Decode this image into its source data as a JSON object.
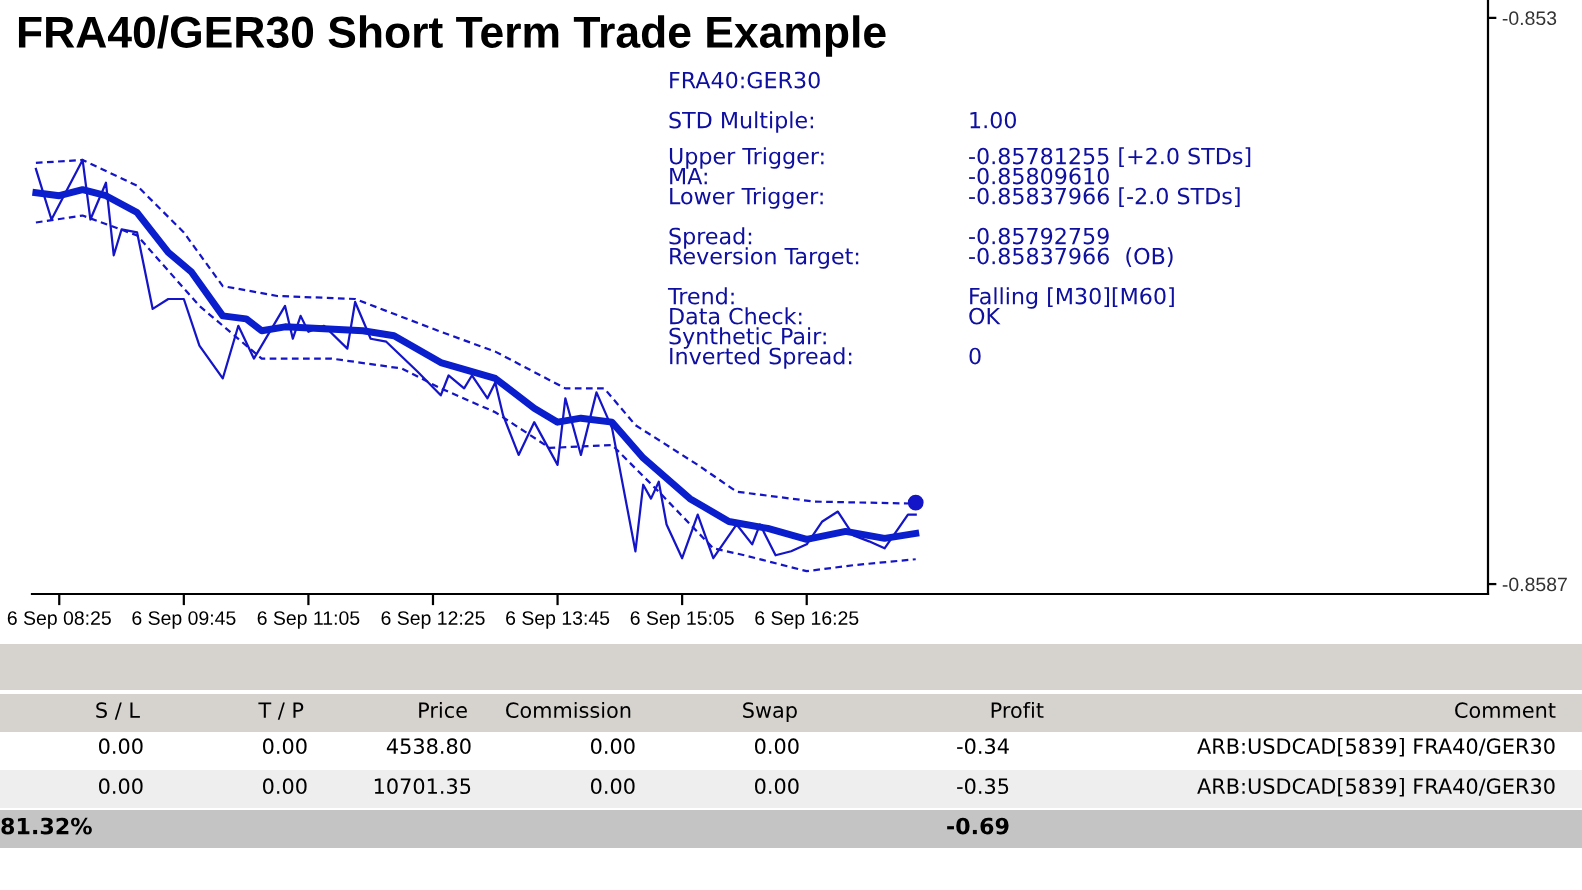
{
  "chart_data": {
    "type": "line",
    "title": "FRA40/GER30 Short Term Trade Example",
    "categories": [
      null,
      null,
      null,
      "6 Sep 08:25",
      null,
      null,
      null,
      null,
      null,
      null,
      null,
      null,
      null,
      null,
      null,
      null,
      null,
      null,
      null,
      "6 Sep 09:45",
      null,
      null,
      null,
      null,
      null,
      null,
      null,
      null,
      null,
      null,
      null,
      null,
      null,
      null,
      null,
      "6 Sep 11:05",
      null,
      null,
      null,
      null,
      null,
      null,
      null,
      null,
      null,
      null,
      null,
      null,
      null,
      null,
      null,
      "6 Sep 12:25",
      null,
      null,
      null,
      null,
      null,
      null,
      null,
      null,
      null,
      null,
      null,
      null,
      null,
      null,
      null,
      "6 Sep 13:45",
      null,
      null,
      null,
      null,
      null,
      null,
      null,
      null,
      null,
      null,
      null,
      null,
      null,
      null,
      null,
      "6 Sep 15:05",
      null,
      null,
      null,
      null,
      null,
      null,
      null,
      null,
      null,
      null,
      null,
      null,
      null,
      null,
      null,
      "6 Sep 16:25",
      null,
      null,
      null,
      null,
      null,
      null,
      null,
      null,
      null,
      null,
      null,
      null,
      null,
      null,
      null,
      null,
      null,
      null,
      null,
      null,
      null,
      null,
      null,
      null,
      null,
      null,
      null,
      null,
      null,
      null,
      null,
      null,
      null,
      null,
      null,
      null,
      null,
      null,
      null,
      null,
      null,
      null,
      null,
      null,
      null,
      null,
      null,
      null,
      null,
      null,
      null,
      null,
      null,
      null,
      null,
      null,
      null,
      null,
      null,
      null,
      null,
      null,
      null,
      null,
      null,
      null,
      null,
      null,
      null,
      null,
      null,
      null,
      null,
      null,
      null,
      null,
      null,
      null,
      null,
      null,
      null,
      null,
      null,
      null,
      null,
      null,
      null
    ],
    "ylim": [
      -0.8588,
      -0.85282
    ],
    "yticks": [
      -0.853,
      -0.8587
    ],
    "grid": false,
    "legend": false,
    "marker": "none",
    "series": [
      {
        "color": "#1414c8",
        "line_style": "solid",
        "values": [
          -0.85452,
          null,
          -0.85503,
          null,
          null,
          null,
          -0.85443,
          -0.85503,
          null,
          -0.85466,
          -0.85539,
          -0.85513,
          null,
          -0.85516,
          null,
          -0.85593,
          null,
          -0.85583,
          null,
          -0.85583,
          null,
          -0.8563,
          null,
          null,
          -0.85663,
          null,
          -0.8561,
          null,
          -0.85643,
          null,
          null,
          null,
          -0.8559,
          -0.85623,
          -0.856,
          -0.85616,
          null,
          -0.8561,
          null,
          null,
          -0.85633,
          -0.85586,
          null,
          -0.85623,
          null,
          -0.85626,
          null,
          null,
          null,
          -0.85656,
          null,
          null,
          -0.8568,
          -0.8566,
          null,
          -0.85673,
          -0.8566,
          null,
          -0.85683,
          -0.85667,
          -0.857,
          null,
          -0.8574,
          null,
          -0.85707,
          null,
          null,
          -0.8575,
          -0.85683,
          null,
          -0.8574,
          null,
          -0.85677,
          null,
          -0.85713,
          null,
          null,
          -0.85837,
          -0.8577,
          -0.85784,
          -0.85767,
          -0.8581,
          null,
          -0.85844,
          null,
          -0.858,
          null,
          -0.85844,
          null,
          null,
          -0.8581,
          null,
          -0.8583,
          -0.8581,
          null,
          -0.85841,
          null,
          -0.85837,
          null,
          -0.8583,
          null,
          -0.85807,
          null,
          -0.85797,
          null,
          -0.85821,
          null,
          -0.85827,
          null,
          -0.85834,
          null,
          null,
          -0.858,
          -0.858,
          null,
          null,
          null,
          null,
          null,
          null,
          null,
          null,
          null,
          null,
          null,
          null,
          null,
          null,
          null,
          null,
          null,
          null,
          null,
          null,
          null,
          null,
          null,
          null,
          null,
          null,
          null,
          null,
          null,
          null,
          null,
          null,
          null,
          null,
          null,
          null,
          null,
          null,
          null,
          null,
          null,
          null,
          null,
          null,
          null,
          null,
          null,
          null,
          null,
          null,
          null,
          null,
          null,
          null,
          null,
          null,
          null,
          null,
          null,
          null,
          null,
          null,
          null,
          null,
          null,
          null,
          null,
          null,
          null,
          null,
          null,
          null,
          null
        ]
      },
      {
        "color": "#0a1ecd",
        "line_style": "solid",
        "values": [
          -0.85476,
          null,
          null,
          -0.85479,
          null,
          null,
          -0.85473,
          null,
          null,
          -0.85479,
          null,
          null,
          null,
          -0.85496,
          null,
          null,
          null,
          -0.85536,
          null,
          null,
          -0.85556,
          null,
          null,
          null,
          -0.856,
          null,
          null,
          -0.85603,
          null,
          -0.85615,
          null,
          null,
          -0.85611,
          null,
          null,
          null,
          null,
          -0.85613,
          null,
          null,
          null,
          null,
          -0.85615,
          null,
          null,
          null,
          -0.8562,
          null,
          null,
          null,
          null,
          null,
          -0.85647,
          null,
          null,
          null,
          null,
          null,
          null,
          -0.85663,
          null,
          null,
          null,
          null,
          -0.85693,
          null,
          null,
          -0.85707,
          null,
          null,
          -0.85703,
          null,
          null,
          null,
          -0.85707,
          null,
          null,
          null,
          -0.85743,
          null,
          null,
          null,
          null,
          null,
          -0.85784,
          null,
          null,
          null,
          null,
          -0.85807,
          null,
          null,
          null,
          null,
          -0.85814,
          null,
          null,
          null,
          null,
          -0.85825,
          null,
          null,
          null,
          null,
          -0.85817,
          null,
          null,
          null,
          null,
          -0.85824,
          null,
          null,
          null,
          -0.85819,
          null,
          null,
          null,
          null,
          null,
          null,
          null,
          null,
          null,
          null,
          null,
          null,
          null,
          null,
          null,
          null,
          null,
          null,
          null,
          null,
          null,
          null,
          null,
          null,
          null,
          null,
          null,
          null,
          null,
          null,
          null,
          null,
          null,
          null,
          null,
          null,
          null,
          null,
          null,
          null,
          null,
          null,
          null,
          null,
          null,
          null,
          null,
          null,
          null,
          null,
          null,
          null,
          null,
          null,
          null,
          null,
          null,
          null,
          null,
          null,
          null,
          null,
          null,
          null,
          null,
          null,
          null,
          null,
          null,
          null,
          null,
          null,
          null
        ]
      },
      {
        "color": "#1414c8",
        "line_style": "dashed",
        "values": [
          -0.85446,
          null,
          null,
          null,
          null,
          null,
          -0.85443,
          null,
          null,
          null,
          null,
          null,
          null,
          -0.85469,
          null,
          null,
          null,
          null,
          null,
          -0.85516,
          null,
          null,
          null,
          null,
          -0.8557,
          null,
          null,
          null,
          null,
          null,
          null,
          -0.8558,
          null,
          null,
          null,
          null,
          null,
          null,
          null,
          null,
          null,
          -0.85583,
          null,
          null,
          null,
          null,
          null,
          null,
          null,
          null,
          null,
          null,
          -0.85616,
          null,
          null,
          null,
          null,
          null,
          null,
          -0.85636,
          null,
          null,
          null,
          null,
          null,
          null,
          null,
          null,
          -0.85673,
          null,
          null,
          null,
          null,
          -0.85673,
          null,
          null,
          null,
          -0.8571,
          null,
          null,
          null,
          null,
          null,
          null,
          null,
          -0.8575,
          null,
          null,
          null,
          null,
          -0.85777,
          null,
          null,
          null,
          null,
          null,
          null,
          null,
          null,
          null,
          -0.85787,
          null,
          null,
          null,
          null,
          null,
          null,
          null,
          null,
          null,
          null,
          null,
          null,
          -0.85789,
          null,
          null,
          null,
          null,
          null,
          null,
          null,
          null,
          null,
          null,
          null,
          null,
          null,
          null,
          null,
          null,
          null,
          null,
          null,
          null,
          null,
          null,
          null,
          null,
          null,
          null,
          null,
          null,
          null,
          null,
          null,
          null,
          null,
          null,
          null,
          null,
          null,
          null,
          null,
          null,
          null,
          null,
          null,
          null,
          null,
          null,
          null,
          null,
          null,
          null,
          null,
          null,
          null,
          null,
          null,
          null,
          null,
          null,
          null,
          null,
          null,
          null,
          null,
          null,
          null,
          null,
          null,
          null,
          null,
          null,
          null,
          null,
          null
        ]
      },
      {
        "color": "#1414c8",
        "line_style": "dashed",
        "values": [
          -0.85506,
          null,
          null,
          null,
          null,
          null,
          -0.85499,
          null,
          null,
          null,
          null,
          null,
          null,
          -0.85519,
          null,
          null,
          null,
          null,
          null,
          null,
          null,
          -0.8559,
          null,
          null,
          null,
          null,
          null,
          null,
          null,
          -0.85643,
          null,
          null,
          null,
          null,
          null,
          null,
          null,
          null,
          -0.85643,
          null,
          null,
          null,
          null,
          null,
          null,
          null,
          null,
          -0.85653,
          null,
          null,
          null,
          null,
          -0.85673,
          null,
          null,
          null,
          null,
          null,
          null,
          -0.85697,
          null,
          null,
          null,
          null,
          null,
          null,
          -0.85733,
          null,
          null,
          null,
          null,
          null,
          null,
          null,
          -0.8573,
          null,
          null,
          null,
          null,
          null,
          -0.85777,
          null,
          null,
          null,
          null,
          null,
          null,
          -0.85834,
          null,
          null,
          null,
          -0.85841,
          null,
          null,
          null,
          null,
          null,
          null,
          null,
          -0.85857,
          null,
          null,
          null,
          null,
          null,
          -0.85851,
          null,
          null,
          null,
          null,
          null,
          null,
          null,
          -0.85845,
          null,
          null,
          null,
          null,
          null,
          null,
          null,
          null,
          null,
          null,
          null,
          null,
          null,
          null,
          null,
          null,
          null,
          null,
          null,
          null,
          null,
          null,
          null,
          null,
          null,
          null,
          null,
          null,
          null,
          null,
          null,
          null,
          null,
          null,
          null,
          null,
          null,
          null,
          null,
          null,
          null,
          null,
          null,
          null,
          null,
          null,
          null,
          null,
          null,
          null,
          null,
          null,
          null,
          null,
          null,
          null,
          null,
          null,
          null,
          null,
          null,
          null,
          null,
          null,
          null,
          null,
          null,
          null,
          null,
          null,
          null,
          null,
          null
        ]
      },
      {
        "type": "scatter",
        "marker": "circle",
        "color": "#1414c8",
        "values": [
          null,
          null,
          null,
          null,
          null,
          null,
          null,
          null,
          null,
          null,
          null,
          null,
          null,
          null,
          null,
          null,
          null,
          null,
          null,
          null,
          null,
          null,
          null,
          null,
          null,
          null,
          null,
          null,
          null,
          null,
          null,
          null,
          null,
          null,
          null,
          null,
          null,
          null,
          null,
          null,
          null,
          null,
          null,
          null,
          null,
          null,
          null,
          null,
          null,
          null,
          null,
          null,
          null,
          null,
          null,
          null,
          null,
          null,
          null,
          null,
          null,
          null,
          null,
          null,
          null,
          null,
          null,
          null,
          null,
          null,
          null,
          null,
          null,
          null,
          null,
          null,
          null,
          null,
          null,
          null,
          null,
          null,
          null,
          null,
          null,
          null,
          null,
          null,
          null,
          null,
          null,
          null,
          null,
          null,
          null,
          null,
          null,
          null,
          null,
          null,
          null,
          null,
          null,
          null,
          null,
          null,
          null,
          null,
          null,
          null,
          null,
          null,
          null,
          -0.85788,
          null,
          null,
          null,
          null,
          null,
          null,
          null,
          null,
          null,
          null,
          null,
          null,
          null,
          null,
          null,
          null,
          null,
          null,
          null,
          null,
          null,
          null,
          null,
          null,
          null,
          null,
          null,
          null,
          null,
          null,
          null,
          null,
          null,
          null,
          null,
          null,
          null,
          null,
          null,
          null,
          null,
          null,
          null,
          null,
          null,
          null,
          null,
          null,
          null,
          null,
          null,
          null,
          null,
          null,
          null,
          null,
          null,
          null,
          null,
          null,
          null,
          null,
          null,
          null,
          null,
          null,
          null,
          null,
          null,
          null,
          null,
          null,
          null
        ]
      }
    ],
    "annotations": [
      "FRA40:GER30",
      "STD Multiple:",
      "1.00",
      "Upper Trigger:",
      "-0.85781255 [+2.0 STDs]",
      "MA:",
      "-0.85809610",
      "Lower Trigger:",
      "-0.85837966 [-2.0 STDs]",
      "Spread:",
      "-0.85792759",
      "Reversion Target:",
      "-0.85837966  (OB)",
      "Trend:",
      "Falling [M30][M60]",
      "Data Check:",
      "OK",
      "Synthetic Pair:",
      "Inverted Spread:",
      "0",
      "S / L",
      "T / P",
      "Price",
      "Commission",
      "Swap",
      "Profit",
      "Comment",
      "0.00",
      "0.00",
      "4538.80",
      "0.00",
      "0.00",
      "-0.34",
      "ARB:USDCAD[5839] FRA40/GER30",
      "0.00",
      "0.00",
      "10701.35",
      "0.00",
      "0.00",
      "-0.35",
      "ARB:USDCAD[5839] FRA40/GER30",
      "81.32%",
      "-0.69"
    ]
  }
}
